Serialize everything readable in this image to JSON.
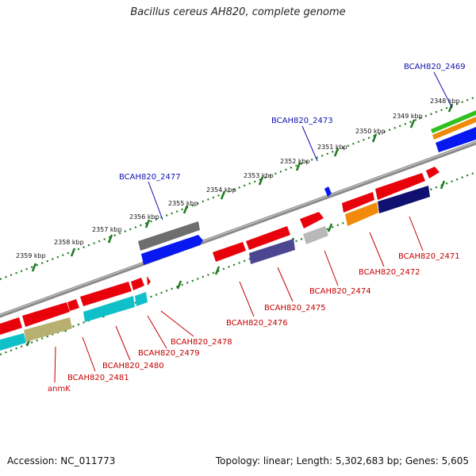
{
  "title": "Bacillus cereus AH820, complete genome",
  "footer": {
    "accession": "Accession: NC_011773",
    "summary": "Topology: linear; Length: 5,302,683 bp; Genes: 5,605"
  },
  "colors": {
    "backbone": "#8a8a8a",
    "ruler_dots": "#1f7a1f",
    "label_blue": "#1010b0",
    "label_red": "#c40000",
    "gene_red": "#e8000a",
    "gene_cyan": "#10c0c8",
    "gene_khaki": "#b8b070",
    "gene_gray": "#6e6e6e",
    "gene_blue": "#0818f0",
    "gene_slate": "#4a4690",
    "gene_lightgray": "#b8b8b8",
    "gene_orange": "#f08a08",
    "gene_navy": "#101070",
    "gene_green": "#30c020"
  },
  "ruler": {
    "tick_labels": [
      "2348 kbp",
      "2349 kbp",
      "2350 kbp",
      "2351 kbp",
      "2352 kbp",
      "2353 kbp",
      "2354 kbp",
      "2355 kbp",
      "2356 kbp",
      "2357 kbp",
      "2358 kbp",
      "2359 kbp"
    ]
  },
  "gene_labels": {
    "top": [
      "BCAH820_2469",
      "BCAH820_2473",
      "BCAH820_2477"
    ],
    "bottom": [
      "BCAH820_2471",
      "BCAH820_2472",
      "BCAH820_2474",
      "BCAH820_2475",
      "BCAH820_2476",
      "BCAH820_2478",
      "BCAH820_2479",
      "BCAH820_2480",
      "BCAH820_2481",
      "anmK"
    ]
  }
}
